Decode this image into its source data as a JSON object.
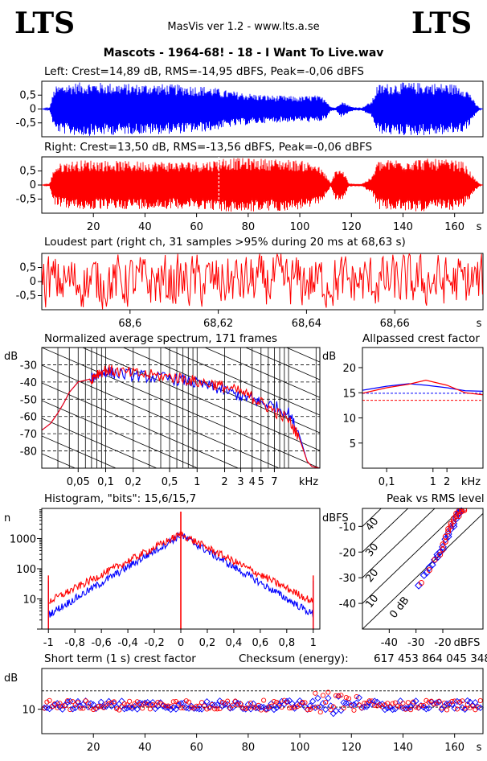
{
  "header": {
    "logo_left": "LTS",
    "logo_right": "LTS",
    "app_title": "MasVis ver 1.2 - www.lts.a.se",
    "song_title": "Mascots - 1964-68! - 18 - I Want To Live.wav"
  },
  "chart_data": [
    {
      "id": "left",
      "type": "area",
      "title": "Left: Crest=14,89 dB, RMS=-14,95 dBFS, Peak=-0,06 dBFS",
      "crest_db": 14.89,
      "rms_dbfs": -14.95,
      "peak_dbfs": -0.06,
      "xlim": [
        0,
        171
      ],
      "ylim": [
        -1,
        1
      ],
      "yticks": [
        "0,5",
        "0",
        "-0,5"
      ],
      "color": "#0000ff",
      "envelope": [
        [
          0,
          0.0
        ],
        [
          3,
          0.05
        ],
        [
          5,
          0.8
        ],
        [
          8,
          0.9
        ],
        [
          12,
          0.95
        ],
        [
          18,
          0.97
        ],
        [
          24,
          0.95
        ],
        [
          30,
          0.93
        ],
        [
          36,
          0.9
        ],
        [
          42,
          0.92
        ],
        [
          48,
          0.9
        ],
        [
          54,
          0.88
        ],
        [
          60,
          0.85
        ],
        [
          66,
          0.8
        ],
        [
          70,
          0.7
        ],
        [
          76,
          0.62
        ],
        [
          82,
          0.55
        ],
        [
          88,
          0.5
        ],
        [
          94,
          0.48
        ],
        [
          100,
          0.45
        ],
        [
          106,
          0.5
        ],
        [
          110,
          0.4
        ],
        [
          112,
          0.08
        ],
        [
          114,
          0.05
        ],
        [
          116,
          0.3
        ],
        [
          118,
          0.2
        ],
        [
          120,
          0.08
        ],
        [
          124,
          0.05
        ],
        [
          128,
          0.3
        ],
        [
          130,
          0.88
        ],
        [
          136,
          0.95
        ],
        [
          142,
          0.96
        ],
        [
          150,
          0.95
        ],
        [
          158,
          0.92
        ],
        [
          163,
          0.85
        ],
        [
          166,
          0.6
        ],
        [
          168,
          0.2
        ],
        [
          170,
          0.02
        ],
        [
          171,
          0.0
        ]
      ]
    },
    {
      "id": "right",
      "type": "area",
      "title": "Right: Crest=13,50 dB, RMS=-13,56 dBFS, Peak=-0,06 dBFS",
      "crest_db": 13.5,
      "rms_dbfs": -13.56,
      "peak_dbfs": -0.06,
      "xlim": [
        0,
        171
      ],
      "ylim": [
        -1,
        1
      ],
      "yticks": [
        "0,5",
        "0",
        "-0,5"
      ],
      "xticks": [
        20,
        40,
        60,
        80,
        100,
        120,
        140,
        160
      ],
      "xunit": "s",
      "loudest_marker_s": 68.63,
      "color": "#ff0000",
      "envelope": [
        [
          0,
          0.0
        ],
        [
          3,
          0.05
        ],
        [
          5,
          0.7
        ],
        [
          8,
          0.8
        ],
        [
          12,
          0.86
        ],
        [
          18,
          0.9
        ],
        [
          24,
          0.88
        ],
        [
          30,
          0.86
        ],
        [
          36,
          0.85
        ],
        [
          42,
          0.86
        ],
        [
          48,
          0.85
        ],
        [
          54,
          0.84
        ],
        [
          60,
          0.85
        ],
        [
          66,
          0.88
        ],
        [
          70,
          0.98
        ],
        [
          76,
          0.96
        ],
        [
          82,
          0.95
        ],
        [
          88,
          0.94
        ],
        [
          94,
          0.92
        ],
        [
          100,
          0.88
        ],
        [
          106,
          0.8
        ],
        [
          110,
          0.4
        ],
        [
          112,
          0.05
        ],
        [
          114,
          0.6
        ],
        [
          117,
          0.5
        ],
        [
          119,
          0.05
        ],
        [
          124,
          0.04
        ],
        [
          128,
          0.3
        ],
        [
          130,
          0.85
        ],
        [
          136,
          0.92
        ],
        [
          142,
          0.94
        ],
        [
          150,
          0.94
        ],
        [
          158,
          0.9
        ],
        [
          163,
          0.85
        ],
        [
          166,
          0.5
        ],
        [
          168,
          0.2
        ],
        [
          170,
          0.02
        ],
        [
          171,
          0.0
        ]
      ]
    },
    {
      "id": "loudest",
      "type": "line",
      "title": "Loudest part (right ch, 31 samples >95% during 20 ms at 68,63 s)",
      "samples_over_95": 31,
      "duration_ms": 20,
      "time_s": 68.63,
      "xlim": [
        68.58,
        68.68
      ],
      "ylim": [
        -1,
        1
      ],
      "yticks": [
        "0,5",
        "0",
        "-0,5"
      ],
      "xticks": [
        "68,6",
        "68,62",
        "68,64",
        "68,66"
      ],
      "xtick_values": [
        68.6,
        68.62,
        68.64,
        68.66
      ],
      "xunit": "s",
      "color": "#ff0000"
    },
    {
      "id": "spectrum",
      "type": "line",
      "title": "Normalized average spectrum, 171 frames",
      "frames": 171,
      "ylabel": "dB",
      "yticks": [
        -30,
        -40,
        -50,
        -60,
        -70,
        -80
      ],
      "ylim": [
        -90,
        -20
      ],
      "xlim": [
        0.02,
        22
      ],
      "xscale": "log",
      "xticks": [
        "0,05",
        "0,1",
        "0,2",
        "0,5",
        "1",
        "2",
        "3",
        "4",
        "5",
        "7"
      ],
      "xtick_values": [
        0.05,
        0.1,
        0.2,
        0.5,
        1,
        2,
        3,
        4,
        5,
        7
      ],
      "xunit": "kHz",
      "series": [
        {
          "color": "#0000ff",
          "points": [
            [
              0.02,
              -68
            ],
            [
              0.025,
              -64
            ],
            [
              0.03,
              -58
            ],
            [
              0.035,
              -52
            ],
            [
              0.04,
              -46
            ],
            [
              0.05,
              -40
            ],
            [
              0.06,
              -39
            ],
            [
              0.07,
              -38
            ],
            [
              0.08,
              -36
            ],
            [
              0.1,
              -34
            ],
            [
              0.13,
              -35
            ],
            [
              0.2,
              -36
            ],
            [
              0.3,
              -37
            ],
            [
              0.5,
              -38
            ],
            [
              0.7,
              -39
            ],
            [
              1,
              -41
            ],
            [
              1.5,
              -43
            ],
            [
              2,
              -45
            ],
            [
              3,
              -48
            ],
            [
              4,
              -50
            ],
            [
              5,
              -52
            ],
            [
              7,
              -54
            ],
            [
              10,
              -58
            ],
            [
              13,
              -70
            ],
            [
              16,
              -86
            ],
            [
              18,
              -89
            ],
            [
              22,
              -90
            ]
          ]
        },
        {
          "color": "#ff0000",
          "points": [
            [
              0.02,
              -68
            ],
            [
              0.025,
              -64
            ],
            [
              0.03,
              -58
            ],
            [
              0.035,
              -52
            ],
            [
              0.04,
              -46
            ],
            [
              0.05,
              -40
            ],
            [
              0.06,
              -39
            ],
            [
              0.07,
              -38
            ],
            [
              0.08,
              -35
            ],
            [
              0.1,
              -33
            ],
            [
              0.13,
              -34
            ],
            [
              0.2,
              -35
            ],
            [
              0.3,
              -36
            ],
            [
              0.5,
              -37
            ],
            [
              0.7,
              -38
            ],
            [
              1,
              -40
            ],
            [
              1.5,
              -41
            ],
            [
              2,
              -43
            ],
            [
              3,
              -46
            ],
            [
              4,
              -49
            ],
            [
              5,
              -52
            ],
            [
              7,
              -57
            ],
            [
              10,
              -62
            ],
            [
              13,
              -72
            ],
            [
              16,
              -86
            ],
            [
              18,
              -89
            ],
            [
              22,
              -90
            ]
          ]
        }
      ]
    },
    {
      "id": "allpassed",
      "type": "line",
      "title": "Allpassed crest factor",
      "ylabel": "dB",
      "yticks": [
        20,
        15,
        10,
        5
      ],
      "ylim": [
        0,
        24
      ],
      "xscale": "log",
      "xlim": [
        0.03,
        12
      ],
      "xticks": [
        "0,1",
        "1",
        "2"
      ],
      "xtick_values": [
        0.1,
        1,
        2
      ],
      "xunit": "kHz",
      "series": [
        {
          "color": "#0000ff",
          "points": [
            [
              0.03,
              15.5
            ],
            [
              0.1,
              16.3
            ],
            [
              0.3,
              16.8
            ],
            [
              0.7,
              16.5
            ],
            [
              2,
              16.0
            ],
            [
              5,
              15.4
            ],
            [
              12,
              15.3
            ]
          ],
          "reference_db": 14.9
        },
        {
          "color": "#ff0000",
          "points": [
            [
              0.03,
              14.9
            ],
            [
              0.1,
              16.0
            ],
            [
              0.3,
              16.7
            ],
            [
              0.7,
              17.5
            ],
            [
              2,
              16.5
            ],
            [
              5,
              15.0
            ],
            [
              12,
              14.6
            ]
          ],
          "reference_db": 13.5
        }
      ]
    },
    {
      "id": "histogram",
      "type": "line",
      "title": "Histogram, \"bits\": 15,6/15,7",
      "bits_left": 15.6,
      "bits_right": 15.7,
      "ylabel": "n",
      "yscale": "log",
      "ylim": [
        1,
        10000
      ],
      "yticks": [
        "1000",
        "100",
        "10"
      ],
      "ytick_values": [
        1000,
        100,
        10
      ],
      "xlim": [
        -1.05,
        1.05
      ],
      "xticks": [
        "-1",
        "-0,8",
        "-0,6",
        "-0,4",
        "-0,2",
        "0",
        "0,2",
        "0,4",
        "0,6",
        "0,8",
        "1"
      ],
      "xtick_values": [
        -1,
        -0.8,
        -0.6,
        -0.4,
        -0.2,
        0,
        0.2,
        0.4,
        0.6,
        0.8,
        1
      ],
      "series": [
        {
          "color": "#0000ff",
          "peak": 1300,
          "edge": 3,
          "clip_spikes": 40
        },
        {
          "color": "#ff0000",
          "peak": 1400,
          "edge": 8,
          "clip_spikes": 60
        }
      ]
    },
    {
      "id": "peak_vs_rms",
      "type": "scatter",
      "title": "Peak vs RMS level",
      "ylabel": "dBFS",
      "xlabel": "dBFS",
      "xlim": [
        -50,
        -5
      ],
      "ylim": [
        -50,
        -3
      ],
      "xticks": [
        -40,
        -30,
        -20
      ],
      "yticks": [
        -10,
        -20,
        -30,
        -40
      ],
      "diagonal_labels": [
        "40",
        "30",
        "20",
        "10",
        "0 dB"
      ],
      "series": [
        {
          "color": "#0000ff",
          "points": [
            [
              -29,
              -33
            ],
            [
              -26,
              -28
            ],
            [
              -24,
              -25
            ],
            [
              -22,
              -22
            ],
            [
              -21,
              -20
            ],
            [
              -20,
              -18
            ],
            [
              -19,
              -15
            ],
            [
              -18,
              -13
            ],
            [
              -17,
              -11
            ],
            [
              -16,
              -9
            ],
            [
              -15,
              -7
            ],
            [
              -14,
              -5
            ],
            [
              -13,
              -4
            ],
            [
              -20,
              -19
            ],
            [
              -22,
              -21
            ],
            [
              -18,
              -14
            ],
            [
              -16,
              -10
            ],
            [
              -15,
              -6
            ],
            [
              -25,
              -26
            ],
            [
              -27,
              -29
            ],
            [
              -23,
              -23
            ],
            [
              -14,
              -4.5
            ]
          ]
        },
        {
          "color": "#ff0000",
          "points": [
            [
              -28,
              -32
            ],
            [
              -25,
              -27
            ],
            [
              -23,
              -23
            ],
            [
              -21,
              -21
            ],
            [
              -20,
              -19
            ],
            [
              -19,
              -16
            ],
            [
              -18,
              -12
            ],
            [
              -17,
              -10
            ],
            [
              -16,
              -8
            ],
            [
              -15,
              -6
            ],
            [
              -14,
              -4
            ],
            [
              -13,
              -3.5
            ],
            [
              -12,
              -3.2
            ],
            [
              -17,
              -9
            ],
            [
              -19,
              -14
            ],
            [
              -20,
              -17
            ],
            [
              -18,
              -11
            ],
            [
              -15,
              -5
            ],
            [
              -16,
              -7
            ],
            [
              -13,
              -4.2
            ],
            [
              -12,
              -3.8
            ],
            [
              -14,
              -6
            ]
          ]
        }
      ]
    },
    {
      "id": "short_term_crest",
      "type": "scatter",
      "title": "Short term (1 s) crest factor",
      "ylabel": "dB",
      "yticks": [
        "10"
      ],
      "ytick_values": [
        10
      ],
      "ylim": [
        4,
        20
      ],
      "reference_lines": [
        10.5,
        14.5
      ],
      "xlim": [
        0,
        171
      ],
      "xticks": [
        20,
        40,
        60,
        80,
        100,
        120,
        140,
        160
      ],
      "xunit": "s",
      "checksum_label": "Checksum (energy):",
      "checksum_value": "617 453 864 045 348",
      "colors": [
        "#0000ff",
        "#ff0000"
      ]
    }
  ]
}
